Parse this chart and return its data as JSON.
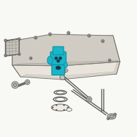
{
  "bg_color": "#f8f8f4",
  "highlight_color": "#1ab5c8",
  "highlight_dark": "#0d8fa0",
  "highlight_mid": "#17a8bb",
  "line_color": "#5a5a5a",
  "dark_color": "#333333",
  "gray_light": "#c8c5bc",
  "gray_med": "#b0ada5",
  "gray_dark": "#888880",
  "tank_fill": "#dedad2",
  "tank_line": "#707068",
  "screw_fill": "#a0a098",
  "white_part": "#eeeae2"
}
